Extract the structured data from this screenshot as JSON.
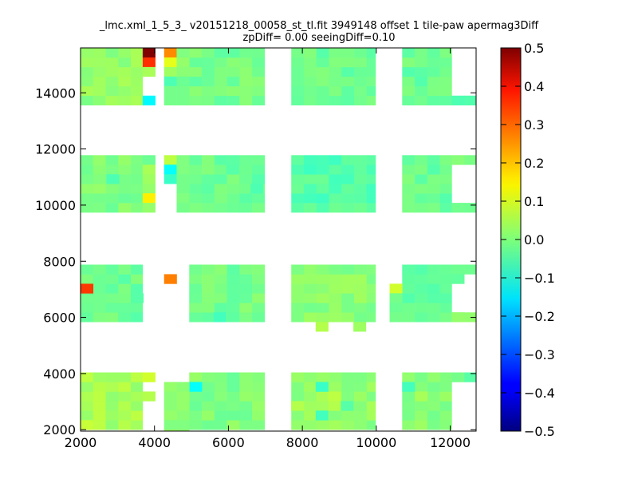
{
  "chart_data": {
    "type": "heatmap",
    "title_line1": "_lmc.xml_1_5_3_ v20151218_00058_st_tl.fit 3949148 offset 1 tile-paw apermag3Diff",
    "title_line2": "zpDiff= 0.00 seeingDiff=0.10",
    "xlim": [
      2000,
      12700
    ],
    "ylim": [
      1950,
      15600
    ],
    "xticks": [
      "2000",
      "4000",
      "6000",
      "8000",
      "10000",
      "12000"
    ],
    "yticks": [
      "2000",
      "4000",
      "6000",
      "8000",
      "10000",
      "12000",
      "14000"
    ],
    "colorbar": {
      "range": [
        -0.5,
        0.5
      ],
      "ticks": [
        "0.5",
        "0.4",
        "0.3",
        "0.2",
        "0.1",
        "0.0",
        "−0.1",
        "−0.2",
        "−0.3",
        "−0.4",
        "−0.5"
      ],
      "colormap": "jet"
    },
    "cell_size": [
      340,
      340
    ],
    "detectors": [
      {
        "x": [
          2000,
          3680
        ],
        "y": [
          13560,
          15600
        ],
        "value": 0.02
      },
      {
        "x": [
          2000,
          3680
        ],
        "y": [
          9740,
          11780
        ],
        "value": 0.0
      },
      {
        "x": [
          2000,
          3680
        ],
        "y": [
          5840,
          7880
        ],
        "value": -0.02
      },
      {
        "x": [
          2000,
          3680
        ],
        "y": [
          2000,
          4040
        ],
        "value": 0.04
      },
      {
        "x": [
          4940,
          6980
        ],
        "y": [
          13560,
          15600
        ],
        "value": -0.01
      },
      {
        "x": [
          4940,
          6980
        ],
        "y": [
          9740,
          11780
        ],
        "value": -0.02
      },
      {
        "x": [
          4940,
          6980
        ],
        "y": [
          5840,
          7880
        ],
        "value": -0.01
      },
      {
        "x": [
          4940,
          6980
        ],
        "y": [
          2000,
          4040
        ],
        "value": 0.0
      },
      {
        "x": [
          7700,
          9980
        ],
        "y": [
          13560,
          15600
        ],
        "value": -0.02
      },
      {
        "x": [
          7700,
          9980
        ],
        "y": [
          9740,
          11780
        ],
        "value": -0.04
      },
      {
        "x": [
          7700,
          9980
        ],
        "y": [
          5840,
          7880
        ],
        "value": 0.01
      },
      {
        "x": [
          7700,
          9980
        ],
        "y": [
          2000,
          4040
        ],
        "value": 0.02
      },
      {
        "x": [
          10700,
          12040
        ],
        "y": [
          13560,
          15600
        ],
        "value": -0.02
      },
      {
        "x": [
          10700,
          12040
        ],
        "y": [
          9740,
          11780
        ],
        "value": -0.02
      },
      {
        "x": [
          10700,
          12040
        ],
        "y": [
          5840,
          7880
        ],
        "value": -0.03
      },
      {
        "x": [
          10700,
          12040
        ],
        "y": [
          2000,
          4040
        ],
        "value": 0.01
      },
      {
        "x": [
          12040,
          12700
        ],
        "y": [
          13560,
          13900
        ],
        "value": -0.03
      },
      {
        "x": [
          12040,
          12700
        ],
        "y": [
          11440,
          11780
        ],
        "value": 0.01
      },
      {
        "x": [
          12040,
          12700
        ],
        "y": [
          9740,
          10080
        ],
        "value": -0.02
      },
      {
        "x": [
          12040,
          12700
        ],
        "y": [
          7540,
          7880
        ],
        "value": -0.03
      },
      {
        "x": [
          12040,
          12700
        ],
        "y": [
          5840,
          6180
        ],
        "value": 0.0
      },
      {
        "x": [
          12040,
          12700
        ],
        "y": [
          3700,
          4040
        ],
        "value": -0.02
      }
    ],
    "cells": [
      {
        "x": 3680,
        "y": 4040,
        "value": 0.08
      },
      {
        "x": 3680,
        "y": 3360,
        "value": 0.05
      },
      {
        "x": 4940,
        "y": 3700,
        "value": -0.12
      },
      {
        "x": 4260,
        "y": 3700,
        "value": 0.02
      },
      {
        "x": 4260,
        "y": 3360,
        "value": 0.01
      },
      {
        "x": 4260,
        "y": 3020,
        "value": 0.01
      },
      {
        "x": 4260,
        "y": 2680,
        "value": 0.02
      },
      {
        "x": 4260,
        "y": 2340,
        "value": 0.0
      },
      {
        "x": 4260,
        "y": 2000,
        "value": 0.03
      },
      {
        "x": 4600,
        "y": 3700,
        "value": 0.01
      },
      {
        "x": 4600,
        "y": 3360,
        "value": 0.02
      },
      {
        "x": 4600,
        "y": 3020,
        "value": 0.02
      },
      {
        "x": 4600,
        "y": 2680,
        "value": 0.01
      },
      {
        "x": 4600,
        "y": 2340,
        "value": 0.0
      },
      {
        "x": 4600,
        "y": 2000,
        "value": 0.02
      },
      {
        "x": 3680,
        "y": 15600,
        "value": 0.5
      },
      {
        "x": 3680,
        "y": 15260,
        "value": 0.33
      },
      {
        "x": 3680,
        "y": 14920,
        "value": 0.04
      },
      {
        "x": 3680,
        "y": 13900,
        "value": -0.13
      },
      {
        "x": 4260,
        "y": 15600,
        "value": 0.24
      },
      {
        "x": 4260,
        "y": 15260,
        "value": 0.1
      },
      {
        "x": 4260,
        "y": 14920,
        "value": 0.03
      },
      {
        "x": 4260,
        "y": 14580,
        "value": -0.05
      },
      {
        "x": 4260,
        "y": 14240,
        "value": -0.01
      },
      {
        "x": 4260,
        "y": 13900,
        "value": -0.01
      },
      {
        "x": 4600,
        "y": 15600,
        "value": 0.0
      },
      {
        "x": 4600,
        "y": 15260,
        "value": 0.02
      },
      {
        "x": 4600,
        "y": 14920,
        "value": 0.01
      },
      {
        "x": 4600,
        "y": 14580,
        "value": -0.02
      },
      {
        "x": 4600,
        "y": 14240,
        "value": -0.01
      },
      {
        "x": 4600,
        "y": 13900,
        "value": -0.01
      },
      {
        "x": 3680,
        "y": 11780,
        "value": -0.02
      },
      {
        "x": 3680,
        "y": 11440,
        "value": 0.04
      },
      {
        "x": 3680,
        "y": 11100,
        "value": 0.03
      },
      {
        "x": 3680,
        "y": 10760,
        "value": 0.02
      },
      {
        "x": 3680,
        "y": 10420,
        "value": 0.14
      },
      {
        "x": 3680,
        "y": 10080,
        "value": 0.02
      },
      {
        "x": 4260,
        "y": 11780,
        "value": 0.06
      },
      {
        "x": 4260,
        "y": 11440,
        "value": -0.12
      },
      {
        "x": 4260,
        "y": 11100,
        "value": -0.07
      },
      {
        "x": 4600,
        "y": 11780,
        "value": 0.0
      },
      {
        "x": 4600,
        "y": 11440,
        "value": 0.0
      },
      {
        "x": 4600,
        "y": 11100,
        "value": -0.01
      },
      {
        "x": 4600,
        "y": 10760,
        "value": -0.01
      },
      {
        "x": 4600,
        "y": 10420,
        "value": 0.0
      },
      {
        "x": 4600,
        "y": 10080,
        "value": -0.01
      },
      {
        "x": 2000,
        "y": 7200,
        "value": 0.32
      },
      {
        "x": 4260,
        "y": 7540,
        "value": 0.25
      },
      {
        "x": 8360,
        "y": 5840,
        "value": 0.05
      },
      {
        "x": 9380,
        "y": 5840,
        "value": 0.03
      },
      {
        "x": 10360,
        "y": 7200,
        "value": 0.08
      },
      {
        "x": 10360,
        "y": 6860,
        "value": -0.01
      },
      {
        "x": 10360,
        "y": 6520,
        "value": -0.02
      },
      {
        "x": 10360,
        "y": 6180,
        "value": -0.01
      },
      {
        "x": 12040,
        "y": 7540,
        "value": -0.03
      },
      {
        "x": 12040,
        "y": 6180,
        "value": 0.02
      },
      {
        "x": 5600,
        "y": 6180,
        "value": -0.06
      },
      {
        "x": 8360,
        "y": 3700,
        "value": -0.07
      },
      {
        "x": 8700,
        "y": 3360,
        "value": 0.06
      },
      {
        "x": 8700,
        "y": 3020,
        "value": 0.05
      },
      {
        "x": 8360,
        "y": 2680,
        "value": -0.06
      },
      {
        "x": 9040,
        "y": 3020,
        "value": -0.04
      },
      {
        "x": 7700,
        "y": 3020,
        "value": 0.05
      },
      {
        "x": 2000,
        "y": 2340,
        "value": 0.07
      },
      {
        "x": 10700,
        "y": 3700,
        "value": -0.06
      },
      {
        "x": 11040,
        "y": 3360,
        "value": 0.04
      },
      {
        "x": 2700,
        "y": 11100,
        "value": -0.05
      },
      {
        "x": 3360,
        "y": 6860,
        "value": -0.04
      },
      {
        "x": 5940,
        "y": 11440,
        "value": -0.04
      },
      {
        "x": 6600,
        "y": 10760,
        "value": -0.05
      }
    ]
  }
}
